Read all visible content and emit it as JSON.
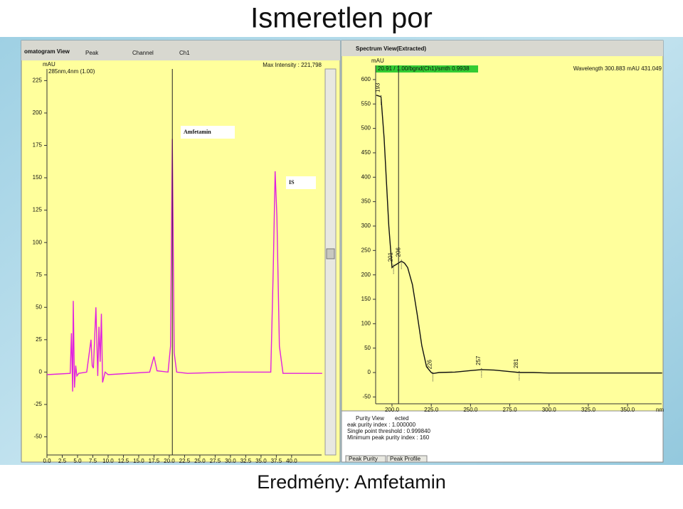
{
  "slide": {
    "title": "Ismeretlen por",
    "caption": "Eredmény: Amfetamin"
  },
  "chart_data": [
    {
      "type": "line",
      "window_title": "omatogram View",
      "toolbar": [
        "Peak",
        "Channel",
        "Ch1"
      ],
      "info": "Max Intensity : 221,798",
      "y_label": "mAU",
      "annotations": [
        "Amfetamin",
        "IS"
      ],
      "x": [
        0,
        3.8,
        4.0,
        4.2,
        4.3,
        4.5,
        4.7,
        4.9,
        5.2,
        6.5,
        7.2,
        7.4,
        7.6,
        8.0,
        8.3,
        8.5,
        8.7,
        8.9,
        9.1,
        9.5,
        10,
        16.8,
        17.5,
        18.0,
        19.8,
        20.2,
        20.5,
        20.8,
        21.2,
        23,
        30,
        36.6,
        37.0,
        37.3,
        37.6,
        38.0,
        38.6,
        45
      ],
      "series": [
        {
          "name": "285nm,4nm (1.00)",
          "color": "#e020e0",
          "values": [
            -2,
            -1,
            30,
            -15,
            55,
            -12,
            5,
            -3,
            -1,
            0,
            25,
            5,
            3,
            50,
            -3,
            35,
            8,
            45,
            -8,
            0,
            -2,
            0,
            12,
            1,
            0,
            20,
            180,
            15,
            0,
            -1,
            0,
            0,
            80,
            155,
            120,
            20,
            -1,
            -1
          ]
        }
      ],
      "xlim": [
        0,
        44.9
      ],
      "ylim": [
        -64,
        234
      ],
      "xticks": [
        {
          "value": 0,
          "label": "0.0"
        },
        {
          "value": 2.5,
          "label": "2.5"
        },
        {
          "value": 5,
          "label": "5.0"
        },
        {
          "value": 7.5,
          "label": "7.5"
        },
        {
          "value": 10,
          "label": "10.0"
        },
        {
          "value": 12.5,
          "label": "12.5"
        },
        {
          "value": 15,
          "label": "15.0"
        },
        {
          "value": 17.5,
          "label": "17.5"
        },
        {
          "value": 20,
          "label": "20.0"
        },
        {
          "value": 22.5,
          "label": "22.5"
        },
        {
          "value": 25,
          "label": "25.0"
        },
        {
          "value": 27.5,
          "label": "27.5"
        },
        {
          "value": 30,
          "label": "30.0"
        },
        {
          "value": 32.5,
          "label": "32.5"
        },
        {
          "value": 35,
          "label": "35.0"
        },
        {
          "value": 37.5,
          "label": "37.5"
        },
        {
          "value": 40,
          "label": "40.0"
        }
      ],
      "yticks": [
        -50,
        -25,
        0,
        25,
        50,
        75,
        100,
        125,
        150,
        175,
        200,
        225
      ]
    },
    {
      "type": "line",
      "window_title": "Spectrum View(Extracted)",
      "info": "20.91 / 1.00/bgnd(Ch1)/smth 0.9938",
      "info2": "Wavelength  300.883   mAU  431.049",
      "y_label": "mAU",
      "x_label": "nm",
      "x": [
        190,
        193,
        195,
        198,
        200,
        201,
        203,
        206,
        208,
        210,
        213,
        216,
        219,
        222,
        225,
        226,
        230,
        240,
        250,
        257,
        265,
        275,
        281,
        290,
        300,
        320,
        350,
        372
      ],
      "series": [
        {
          "color": "#111111",
          "values": [
            568,
            565,
            480,
            300,
            215,
            218,
            222,
            228,
            224,
            215,
            180,
            120,
            55,
            12,
            0,
            -2,
            0,
            1,
            4,
            6,
            5,
            2,
            0,
            0,
            -1,
            -1,
            -1,
            -1
          ]
        }
      ],
      "peak_labels": [
        193,
        201,
        206,
        226,
        257,
        281
      ],
      "xlim": [
        189.6,
        371.7
      ],
      "ylim": [
        -64,
        629
      ],
      "xticks": [
        {
          "value": 200,
          "label": "200.0"
        },
        {
          "value": 225,
          "label": "225.0"
        },
        {
          "value": 250,
          "label": "250.0"
        },
        {
          "value": 275,
          "label": "275.0"
        },
        {
          "value": 300,
          "label": "300.0"
        },
        {
          "value": 325,
          "label": "325.0"
        },
        {
          "value": 350,
          "label": "350.0"
        }
      ],
      "yticks": [
        -50,
        0,
        50,
        100,
        150,
        200,
        250,
        300,
        350,
        400,
        450,
        500,
        550,
        600
      ],
      "purity": {
        "title": "Purity View",
        "status": "ected",
        "lines": [
          "eak purity index : 1.000000",
          "Single point threshold : 0.999840",
          "Minimum peak purity index : 160"
        ],
        "tabs": [
          "Peak Purity",
          "Peak Profile"
        ]
      }
    }
  ]
}
